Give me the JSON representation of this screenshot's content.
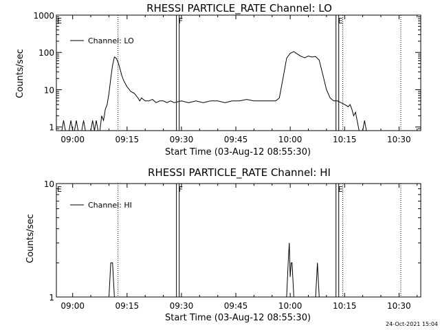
{
  "footer": {
    "timestamp": "24-Oct-2021 15:04"
  },
  "chart_data": [
    {
      "type": "line",
      "title": "RHESSI PARTICLE_RATE Channel: LO",
      "xlabel": "Start Time (03-Aug-12 08:55:30)",
      "ylabel": "Counts/sec",
      "yscale": "log",
      "xlim": [
        "08:55:30",
        "10:36:00"
      ],
      "ylim": [
        0.8,
        1000
      ],
      "x_ticks": [
        "09:00",
        "09:15",
        "09:30",
        "09:45",
        "10:00",
        "10:15",
        "10:30"
      ],
      "y_ticks": [
        "1",
        "10",
        "100",
        "1000"
      ],
      "legend": {
        "position": "top-left",
        "entries": [
          "Channel: LO"
        ]
      },
      "markers": [
        {
          "label": "E",
          "time": "08:55:30",
          "style": "solid"
        },
        {
          "label": "F",
          "time": "09:29:00",
          "style": "double"
        },
        {
          "label": "E",
          "time": "10:13:00",
          "style": "double"
        }
      ],
      "dotted_lines": [
        "09:12:30",
        "10:14:30",
        "10:30:30"
      ],
      "series": [
        {
          "name": "Channel: LO",
          "points": [
            [
              "08:57:00",
              0.8
            ],
            [
              "08:57:30",
              1.5
            ],
            [
              "08:58:00",
              0.8
            ],
            [
              "08:59:00",
              0.8
            ],
            [
              "08:59:30",
              1.5
            ],
            [
              "09:00:00",
              0.8
            ],
            [
              "09:00:30",
              0.8
            ],
            [
              "09:01:00",
              1.5
            ],
            [
              "09:01:30",
              0.8
            ],
            [
              "09:02:30",
              0.8
            ],
            [
              "09:03:00",
              1.5
            ],
            [
              "09:03:30",
              0.8
            ],
            [
              "09:05:00",
              0.8
            ],
            [
              "09:05:30",
              1.5
            ],
            [
              "09:06:00",
              0.8
            ],
            [
              "09:06:30",
              1.5
            ],
            [
              "09:07:00",
              0.8
            ],
            [
              "09:07:30",
              0.8
            ],
            [
              "09:08:00",
              2
            ],
            [
              "09:08:30",
              1.5
            ],
            [
              "09:09:00",
              3
            ],
            [
              "09:09:30",
              4
            ],
            [
              "09:10:00",
              8
            ],
            [
              "09:10:30",
              20
            ],
            [
              "09:11:00",
              45
            ],
            [
              "09:11:30",
              75
            ],
            [
              "09:12:00",
              70
            ],
            [
              "09:12:30",
              55
            ],
            [
              "09:13:00",
              38
            ],
            [
              "09:13:30",
              25
            ],
            [
              "09:14:00",
              18
            ],
            [
              "09:15:00",
              12
            ],
            [
              "09:16:00",
              9
            ],
            [
              "09:17:00",
              8
            ],
            [
              "09:18:00",
              6
            ],
            [
              "09:18:30",
              5
            ],
            [
              "09:19:00",
              6
            ],
            [
              "09:20:00",
              5
            ],
            [
              "09:21:00",
              5
            ],
            [
              "09:22:00",
              5.5
            ],
            [
              "09:23:00",
              4.5
            ],
            [
              "09:24:00",
              5
            ],
            [
              "09:25:00",
              5
            ],
            [
              "09:26:00",
              4.5
            ],
            [
              "09:27:00",
              5
            ],
            [
              "09:28:00",
              4.5
            ],
            [
              "09:30:00",
              5
            ],
            [
              "09:32:00",
              4.5
            ],
            [
              "09:34:00",
              5
            ],
            [
              "09:36:00",
              4.5
            ],
            [
              "09:38:00",
              5
            ],
            [
              "09:40:00",
              5
            ],
            [
              "09:42:00",
              4.5
            ],
            [
              "09:44:00",
              5
            ],
            [
              "09:46:00",
              5
            ],
            [
              "09:48:00",
              5.5
            ],
            [
              "09:50:00",
              5
            ],
            [
              "09:52:00",
              5
            ],
            [
              "09:54:00",
              5
            ],
            [
              "09:56:00",
              5
            ],
            [
              "09:57:00",
              6
            ],
            [
              "09:58:00",
              20
            ],
            [
              "09:59:00",
              70
            ],
            [
              "10:00:00",
              95
            ],
            [
              "10:01:00",
              105
            ],
            [
              "10:02:00",
              90
            ],
            [
              "10:03:00",
              78
            ],
            [
              "10:04:00",
              72
            ],
            [
              "10:05:00",
              80
            ],
            [
              "10:06:00",
              75
            ],
            [
              "10:07:00",
              78
            ],
            [
              "10:08:00",
              62
            ],
            [
              "10:09:00",
              25
            ],
            [
              "10:10:00",
              10
            ],
            [
              "10:11:00",
              6
            ],
            [
              "10:12:00",
              5
            ],
            [
              "10:13:00",
              5
            ],
            [
              "10:14:00",
              4.5
            ],
            [
              "10:15:00",
              4
            ],
            [
              "10:16:00",
              3.5
            ],
            [
              "10:16:30",
              4
            ],
            [
              "10:17:00",
              3
            ],
            [
              "10:17:30",
              2
            ],
            [
              "10:18:00",
              2.5
            ],
            [
              "10:19:00",
              0.8
            ],
            [
              "10:20:00",
              0.8
            ],
            [
              "10:20:30",
              1.5
            ],
            [
              "10:21:00",
              0.8
            ]
          ]
        }
      ]
    },
    {
      "type": "line",
      "title": "RHESSI PARTICLE_RATE Channel: HI",
      "xlabel": "Start Time (03-Aug-12 08:55:30)",
      "ylabel": "Counts/sec",
      "yscale": "log",
      "xlim": [
        "08:55:30",
        "10:36:00"
      ],
      "ylim": [
        1,
        10
      ],
      "x_ticks": [
        "09:00",
        "09:15",
        "09:30",
        "09:45",
        "10:00",
        "10:15",
        "10:30"
      ],
      "y_ticks": [
        "1",
        "10"
      ],
      "legend": {
        "position": "top-left",
        "entries": [
          "Channel: HI"
        ]
      },
      "markers": [
        {
          "label": "E",
          "time": "08:55:30",
          "style": "solid"
        },
        {
          "label": "F",
          "time": "09:29:00",
          "style": "double"
        },
        {
          "label": "E",
          "time": "10:13:00",
          "style": "double"
        }
      ],
      "dotted_lines": [
        "09:12:30",
        "10:14:30",
        "10:30:30"
      ],
      "series": [
        {
          "name": "Channel: HI",
          "points": [
            [
              "09:10:00",
              1
            ],
            [
              "09:10:30",
              2
            ],
            [
              "09:11:00",
              2
            ],
            [
              "09:11:30",
              1
            ],
            [
              "09:59:00",
              1
            ],
            [
              "09:59:30",
              2.2
            ],
            [
              "09:59:45",
              3
            ],
            [
              "10:00:00",
              1.5
            ],
            [
              "10:00:15",
              2
            ],
            [
              "10:00:30",
              2
            ],
            [
              "10:01:00",
              1
            ],
            [
              "10:07:00",
              1
            ],
            [
              "10:07:30",
              2
            ],
            [
              "10:08:00",
              1
            ]
          ]
        }
      ]
    }
  ]
}
